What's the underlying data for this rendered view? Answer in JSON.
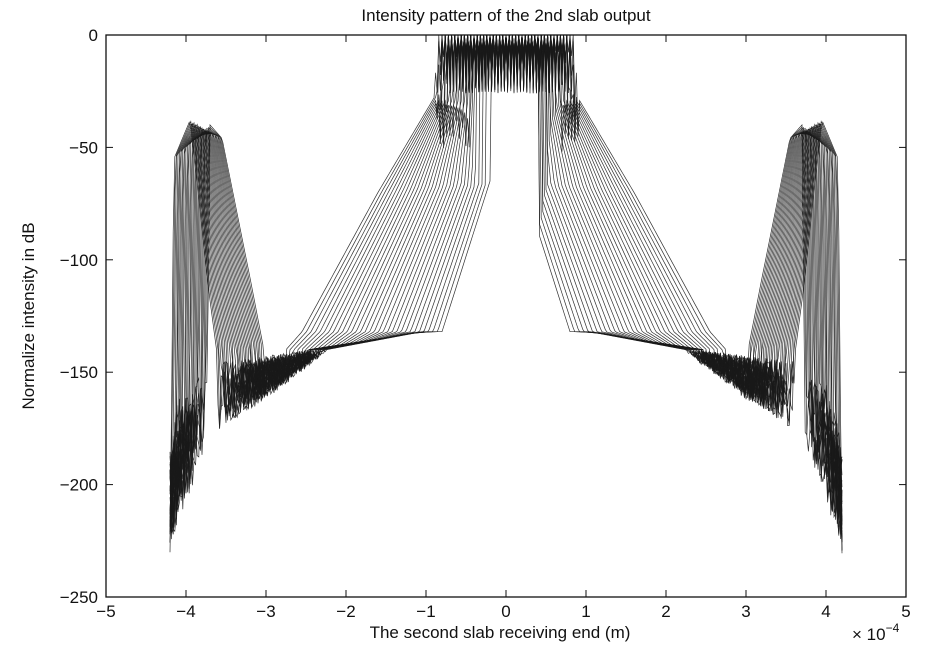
{
  "chart_data": {
    "type": "line",
    "title": "Intensity pattern of the 2nd slab output",
    "xlabel": "The second slab receiving end (m)",
    "ylabel": "Normalize intensity in dB",
    "x_multiplier_label": "× 10",
    "x_multiplier_exponent": "−4",
    "xlim": [
      -5,
      5
    ],
    "ylim": [
      -250,
      0
    ],
    "x_ticks": [
      -5,
      -4,
      -3,
      -2,
      -1,
      0,
      1,
      2,
      3,
      4,
      5
    ],
    "y_ticks": [
      0,
      -50,
      -100,
      -150,
      -200,
      -250
    ],
    "x_tick_labels": [
      "−5",
      "−4",
      "−3",
      "−2",
      "−1",
      "0",
      "1",
      "2",
      "3",
      "4",
      "5"
    ],
    "y_tick_labels": [
      "0",
      "−50",
      "−100",
      "−150",
      "−200",
      "−250"
    ],
    "grid": false,
    "legend": "none",
    "line_color": "#1a1a1a",
    "n_series": 32,
    "series_shape": {
      "x_extent": [
        -4.2,
        4.2
      ],
      "main_lobe_peak_db": 0,
      "main_lobe_plateau_db": -28,
      "diverging_lobe_start": [
        [
          -0.9,
          -70
        ],
        [
          -0.7,
          -70
        ]
      ],
      "diverging_lobe_end": [
        [
          -2.6,
          -142
        ],
        [
          0.9,
          -142
        ]
      ],
      "side_shoulder_db": -132,
      "edge_lobe_peak": [
        [
          -3.7,
          -38
        ],
        [
          3.7,
          -38
        ]
      ],
      "edge_floor_db": -150,
      "noise_floor_db": [
        -205,
        -160
      ]
    }
  }
}
